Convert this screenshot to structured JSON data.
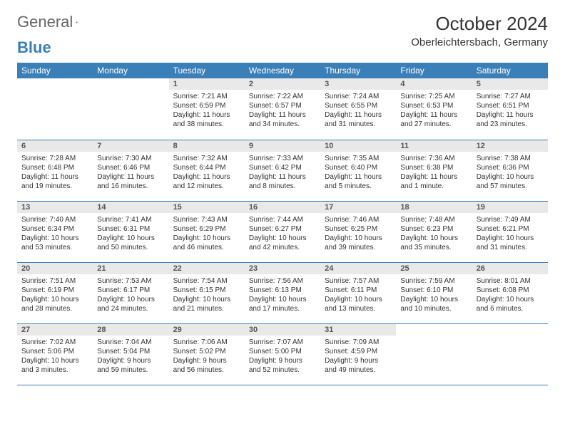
{
  "brand": {
    "part1": "General",
    "part2": "Blue"
  },
  "colors": {
    "header_bg": "#3a7fb8",
    "header_text": "#ffffff",
    "daynum_bg": "#e9e9e9",
    "border": "#3a7fb8",
    "text": "#333333"
  },
  "title": "October 2024",
  "location": "Oberleichtersbach, Germany",
  "weekdays": [
    "Sunday",
    "Monday",
    "Tuesday",
    "Wednesday",
    "Thursday",
    "Friday",
    "Saturday"
  ],
  "weeks": [
    [
      null,
      null,
      {
        "n": "1",
        "sr": "Sunrise: 7:21 AM",
        "ss": "Sunset: 6:59 PM",
        "dl": "Daylight: 11 hours and 38 minutes."
      },
      {
        "n": "2",
        "sr": "Sunrise: 7:22 AM",
        "ss": "Sunset: 6:57 PM",
        "dl": "Daylight: 11 hours and 34 minutes."
      },
      {
        "n": "3",
        "sr": "Sunrise: 7:24 AM",
        "ss": "Sunset: 6:55 PM",
        "dl": "Daylight: 11 hours and 31 minutes."
      },
      {
        "n": "4",
        "sr": "Sunrise: 7:25 AM",
        "ss": "Sunset: 6:53 PM",
        "dl": "Daylight: 11 hours and 27 minutes."
      },
      {
        "n": "5",
        "sr": "Sunrise: 7:27 AM",
        "ss": "Sunset: 6:51 PM",
        "dl": "Daylight: 11 hours and 23 minutes."
      }
    ],
    [
      {
        "n": "6",
        "sr": "Sunrise: 7:28 AM",
        "ss": "Sunset: 6:48 PM",
        "dl": "Daylight: 11 hours and 19 minutes."
      },
      {
        "n": "7",
        "sr": "Sunrise: 7:30 AM",
        "ss": "Sunset: 6:46 PM",
        "dl": "Daylight: 11 hours and 16 minutes."
      },
      {
        "n": "8",
        "sr": "Sunrise: 7:32 AM",
        "ss": "Sunset: 6:44 PM",
        "dl": "Daylight: 11 hours and 12 minutes."
      },
      {
        "n": "9",
        "sr": "Sunrise: 7:33 AM",
        "ss": "Sunset: 6:42 PM",
        "dl": "Daylight: 11 hours and 8 minutes."
      },
      {
        "n": "10",
        "sr": "Sunrise: 7:35 AM",
        "ss": "Sunset: 6:40 PM",
        "dl": "Daylight: 11 hours and 5 minutes."
      },
      {
        "n": "11",
        "sr": "Sunrise: 7:36 AM",
        "ss": "Sunset: 6:38 PM",
        "dl": "Daylight: 11 hours and 1 minute."
      },
      {
        "n": "12",
        "sr": "Sunrise: 7:38 AM",
        "ss": "Sunset: 6:36 PM",
        "dl": "Daylight: 10 hours and 57 minutes."
      }
    ],
    [
      {
        "n": "13",
        "sr": "Sunrise: 7:40 AM",
        "ss": "Sunset: 6:34 PM",
        "dl": "Daylight: 10 hours and 53 minutes."
      },
      {
        "n": "14",
        "sr": "Sunrise: 7:41 AM",
        "ss": "Sunset: 6:31 PM",
        "dl": "Daylight: 10 hours and 50 minutes."
      },
      {
        "n": "15",
        "sr": "Sunrise: 7:43 AM",
        "ss": "Sunset: 6:29 PM",
        "dl": "Daylight: 10 hours and 46 minutes."
      },
      {
        "n": "16",
        "sr": "Sunrise: 7:44 AM",
        "ss": "Sunset: 6:27 PM",
        "dl": "Daylight: 10 hours and 42 minutes."
      },
      {
        "n": "17",
        "sr": "Sunrise: 7:46 AM",
        "ss": "Sunset: 6:25 PM",
        "dl": "Daylight: 10 hours and 39 minutes."
      },
      {
        "n": "18",
        "sr": "Sunrise: 7:48 AM",
        "ss": "Sunset: 6:23 PM",
        "dl": "Daylight: 10 hours and 35 minutes."
      },
      {
        "n": "19",
        "sr": "Sunrise: 7:49 AM",
        "ss": "Sunset: 6:21 PM",
        "dl": "Daylight: 10 hours and 31 minutes."
      }
    ],
    [
      {
        "n": "20",
        "sr": "Sunrise: 7:51 AM",
        "ss": "Sunset: 6:19 PM",
        "dl": "Daylight: 10 hours and 28 minutes."
      },
      {
        "n": "21",
        "sr": "Sunrise: 7:53 AM",
        "ss": "Sunset: 6:17 PM",
        "dl": "Daylight: 10 hours and 24 minutes."
      },
      {
        "n": "22",
        "sr": "Sunrise: 7:54 AM",
        "ss": "Sunset: 6:15 PM",
        "dl": "Daylight: 10 hours and 21 minutes."
      },
      {
        "n": "23",
        "sr": "Sunrise: 7:56 AM",
        "ss": "Sunset: 6:13 PM",
        "dl": "Daylight: 10 hours and 17 minutes."
      },
      {
        "n": "24",
        "sr": "Sunrise: 7:57 AM",
        "ss": "Sunset: 6:11 PM",
        "dl": "Daylight: 10 hours and 13 minutes."
      },
      {
        "n": "25",
        "sr": "Sunrise: 7:59 AM",
        "ss": "Sunset: 6:10 PM",
        "dl": "Daylight: 10 hours and 10 minutes."
      },
      {
        "n": "26",
        "sr": "Sunrise: 8:01 AM",
        "ss": "Sunset: 6:08 PM",
        "dl": "Daylight: 10 hours and 6 minutes."
      }
    ],
    [
      {
        "n": "27",
        "sr": "Sunrise: 7:02 AM",
        "ss": "Sunset: 5:06 PM",
        "dl": "Daylight: 10 hours and 3 minutes."
      },
      {
        "n": "28",
        "sr": "Sunrise: 7:04 AM",
        "ss": "Sunset: 5:04 PM",
        "dl": "Daylight: 9 hours and 59 minutes."
      },
      {
        "n": "29",
        "sr": "Sunrise: 7:06 AM",
        "ss": "Sunset: 5:02 PM",
        "dl": "Daylight: 9 hours and 56 minutes."
      },
      {
        "n": "30",
        "sr": "Sunrise: 7:07 AM",
        "ss": "Sunset: 5:00 PM",
        "dl": "Daylight: 9 hours and 52 minutes."
      },
      {
        "n": "31",
        "sr": "Sunrise: 7:09 AM",
        "ss": "Sunset: 4:59 PM",
        "dl": "Daylight: 9 hours and 49 minutes."
      },
      null,
      null
    ]
  ]
}
